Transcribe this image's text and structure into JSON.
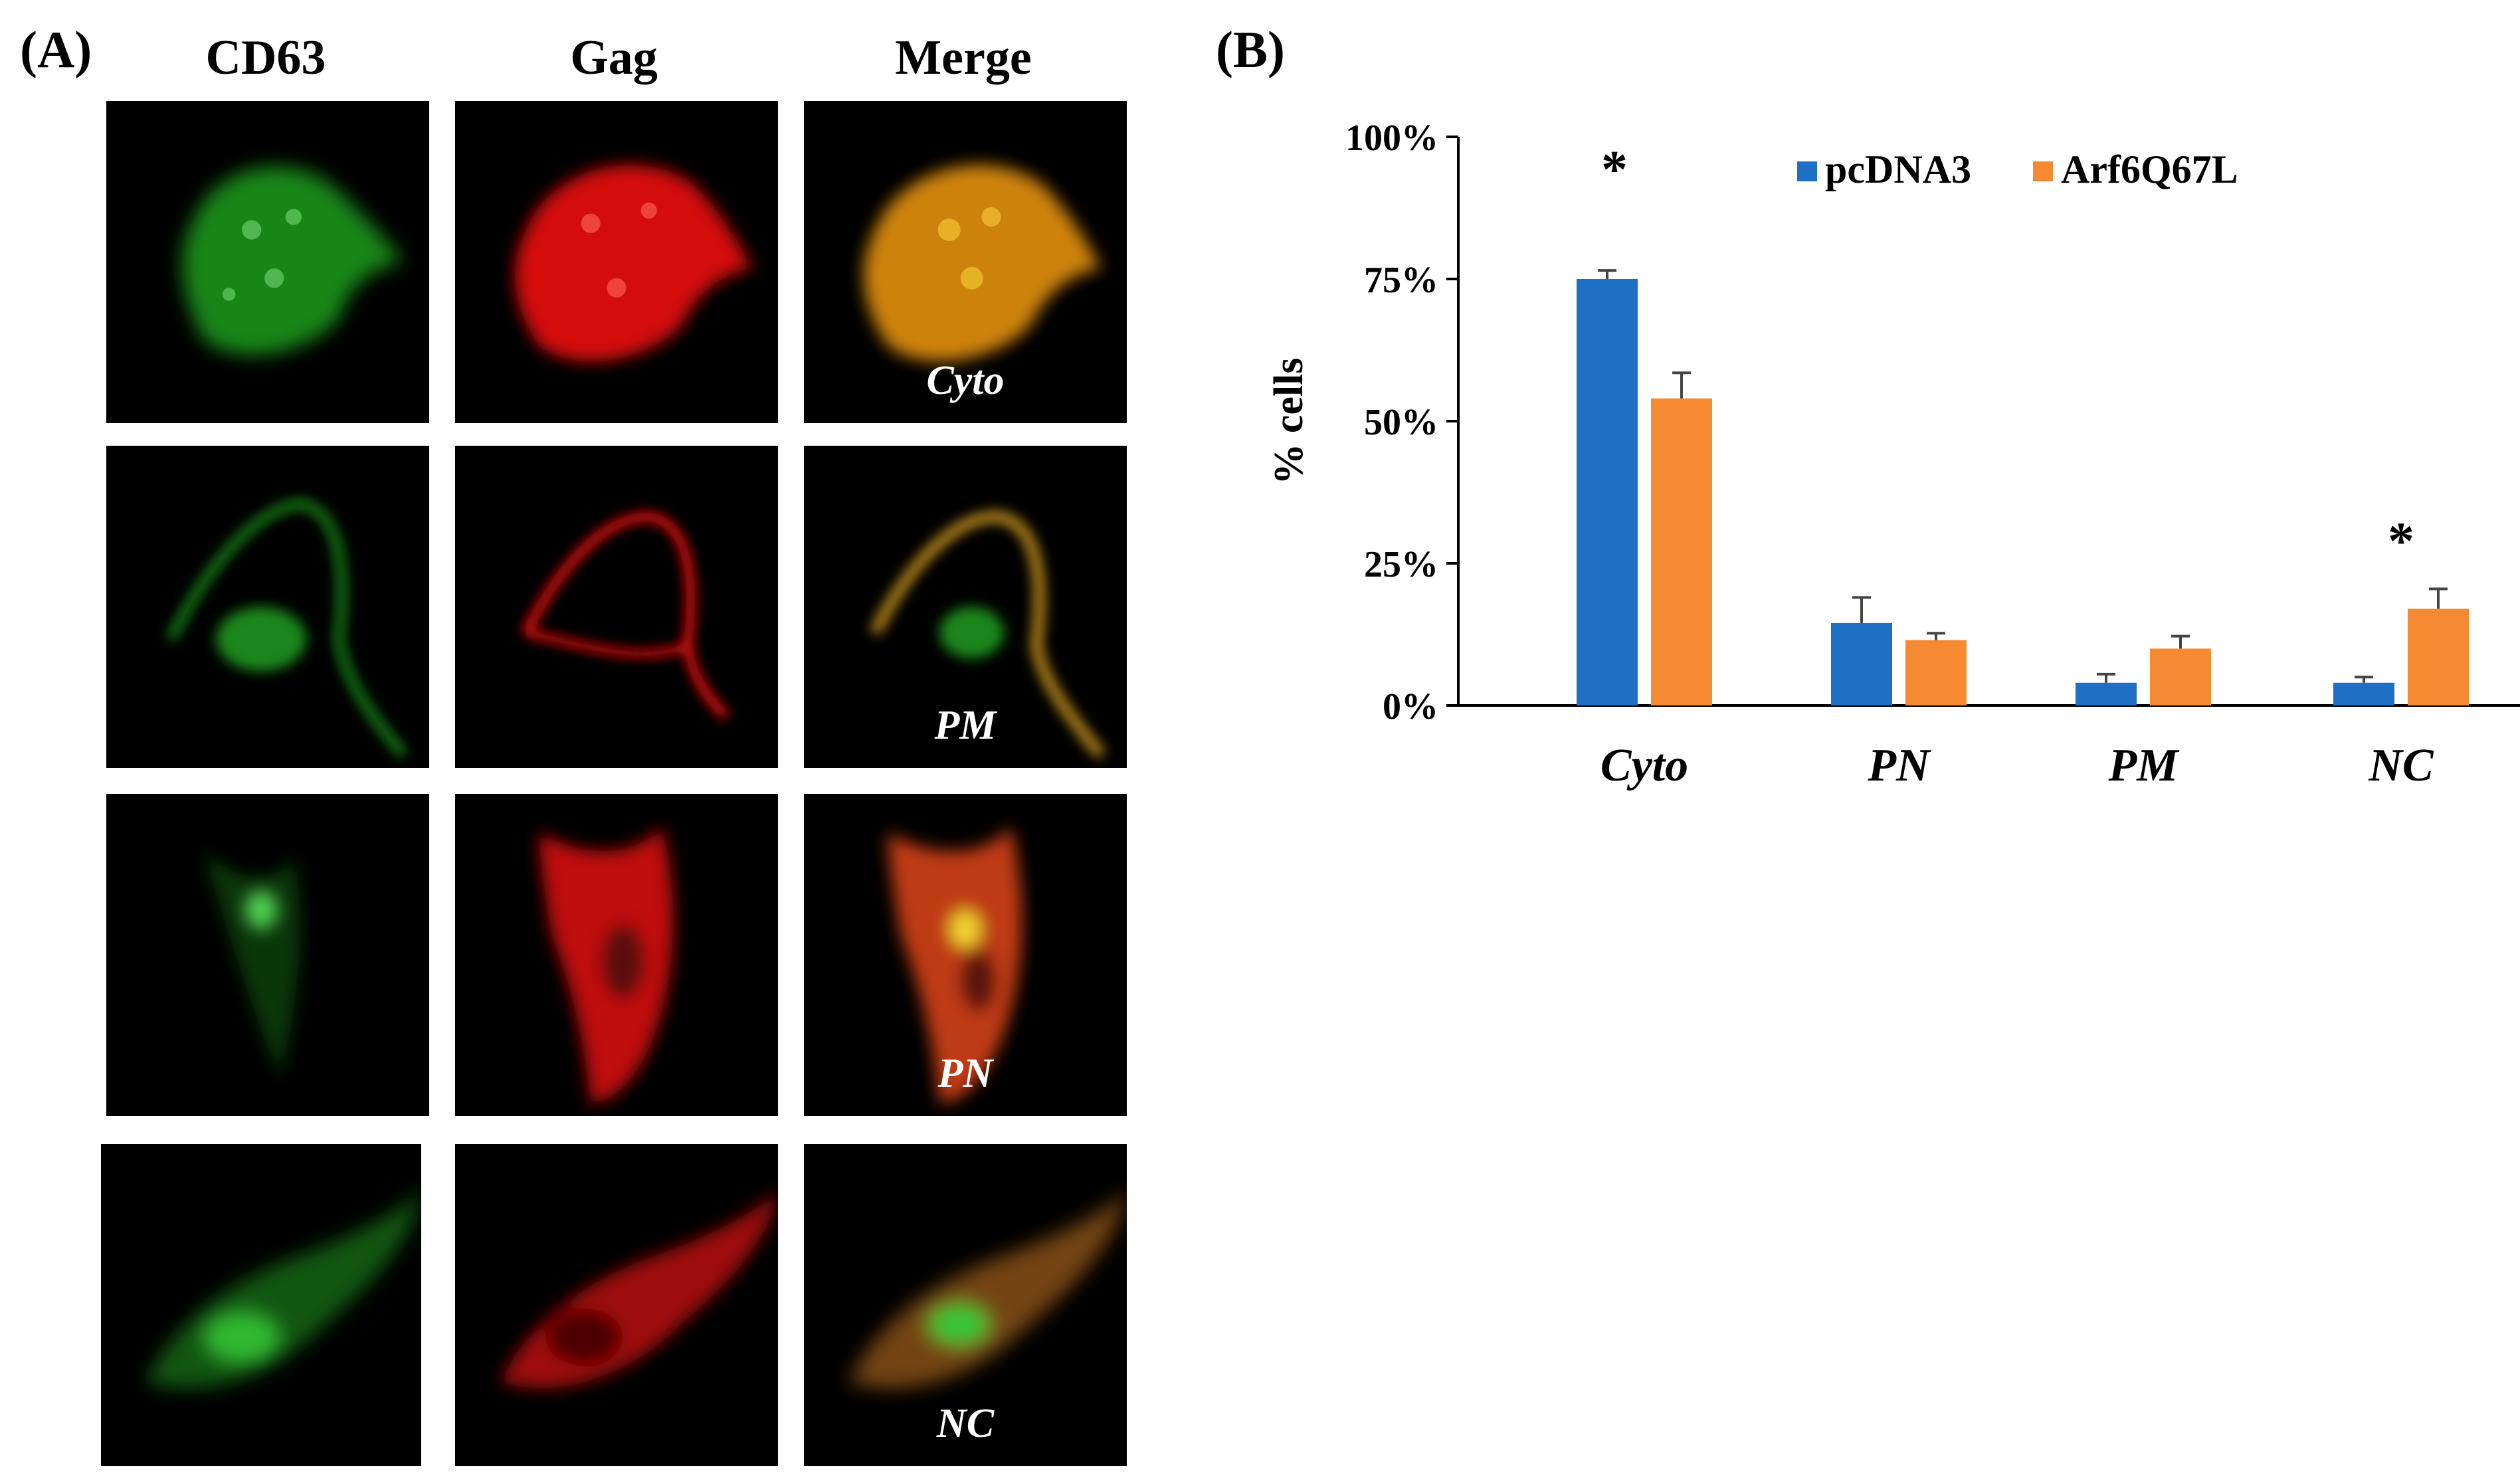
{
  "panel_a": {
    "label": "(A)",
    "columns": [
      "CD63",
      "Gag",
      "Merge"
    ],
    "row_labels": [
      "Cyto",
      "PM",
      "PN",
      "NC"
    ]
  },
  "panel_b": {
    "label": "(B)"
  },
  "colors": {
    "cd63": "#1f9e1f",
    "gag": "#e01010",
    "series1": "#1f6fc4",
    "series2": "#f58a33"
  },
  "chart_data": {
    "type": "bar",
    "title": "",
    "xlabel": "",
    "ylabel": "% cells",
    "categories": [
      "Cyto",
      "PN",
      "PM",
      "NC"
    ],
    "series": [
      {
        "name": "pcDNA3",
        "values": [
          75,
          14.5,
          4,
          4
        ],
        "errors": [
          1.5,
          4.5,
          1.5,
          1
        ]
      },
      {
        "name": "Arf6Q67L",
        "values": [
          54,
          11.5,
          10,
          17
        ],
        "errors": [
          4.5,
          1.2,
          2.2,
          3.5
        ]
      }
    ],
    "ylim": [
      0,
      100
    ],
    "yticks": [
      0,
      25,
      50,
      75,
      100
    ],
    "ytick_labels": [
      "0%",
      "25%",
      "50%",
      "75%",
      "100%"
    ],
    "legend": "top-right",
    "annotations": [
      {
        "category": "Cyto",
        "text": "*"
      },
      {
        "category": "NC",
        "text": "*"
      }
    ]
  }
}
